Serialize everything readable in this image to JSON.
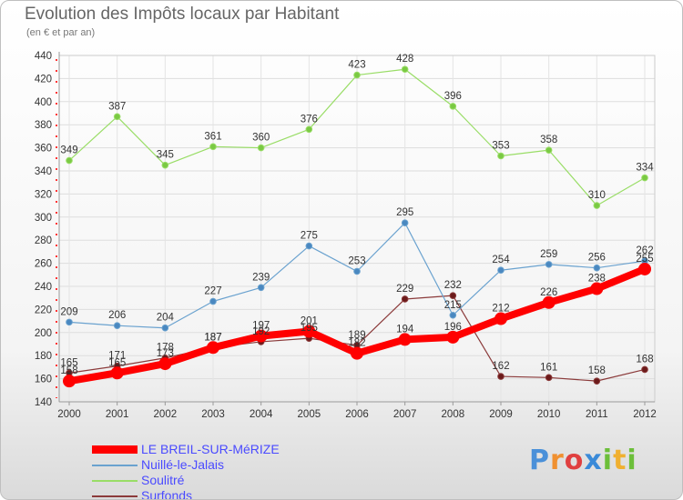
{
  "title": "Evolution des Impôts locaux par Habitant",
  "subtitle": "(en € et par an)",
  "logo": {
    "text": "Proxiti",
    "letters": [
      "P",
      "r",
      "o",
      "x",
      "i",
      "t",
      "i"
    ]
  },
  "chart_data": {
    "type": "line",
    "x": [
      "2000",
      "2001",
      "2002",
      "2003",
      "2004",
      "2005",
      "2006",
      "2007",
      "2008",
      "2009",
      "2010",
      "2011",
      "2012"
    ],
    "ylim": [
      140,
      440
    ],
    "yticks": [
      140,
      160,
      180,
      200,
      220,
      240,
      260,
      280,
      300,
      320,
      340,
      360,
      380,
      400,
      420,
      440
    ],
    "grid": true,
    "legend_position": "bottom-left",
    "series": [
      {
        "name": "LE BREIL-SUR-MéRIZE",
        "color": "#ff0000",
        "width": 8,
        "point_color": "#ff0000",
        "values": [
          158,
          165,
          173,
          187,
          197,
          201,
          182,
          194,
          196,
          212,
          226,
          238,
          255
        ]
      },
      {
        "name": "Nuillé-le-Jalais",
        "color": "#6aa2cf",
        "width": 1.2,
        "point_color": "#4a88c0",
        "values": [
          209,
          206,
          204,
          227,
          239,
          275,
          253,
          295,
          215,
          254,
          259,
          256,
          262
        ]
      },
      {
        "name": "Soulitré",
        "color": "#99dd66",
        "width": 1.2,
        "point_color": "#7ac943",
        "values": [
          349,
          387,
          345,
          361,
          360,
          376,
          423,
          428,
          396,
          353,
          358,
          310,
          334
        ]
      },
      {
        "name": "Surfonds",
        "color": "#8b3a3a",
        "width": 1.2,
        "point_color": "#6b1a1a",
        "values": [
          165,
          171,
          178,
          187,
          192,
          195,
          189,
          229,
          232,
          162,
          161,
          158,
          168
        ]
      }
    ]
  }
}
